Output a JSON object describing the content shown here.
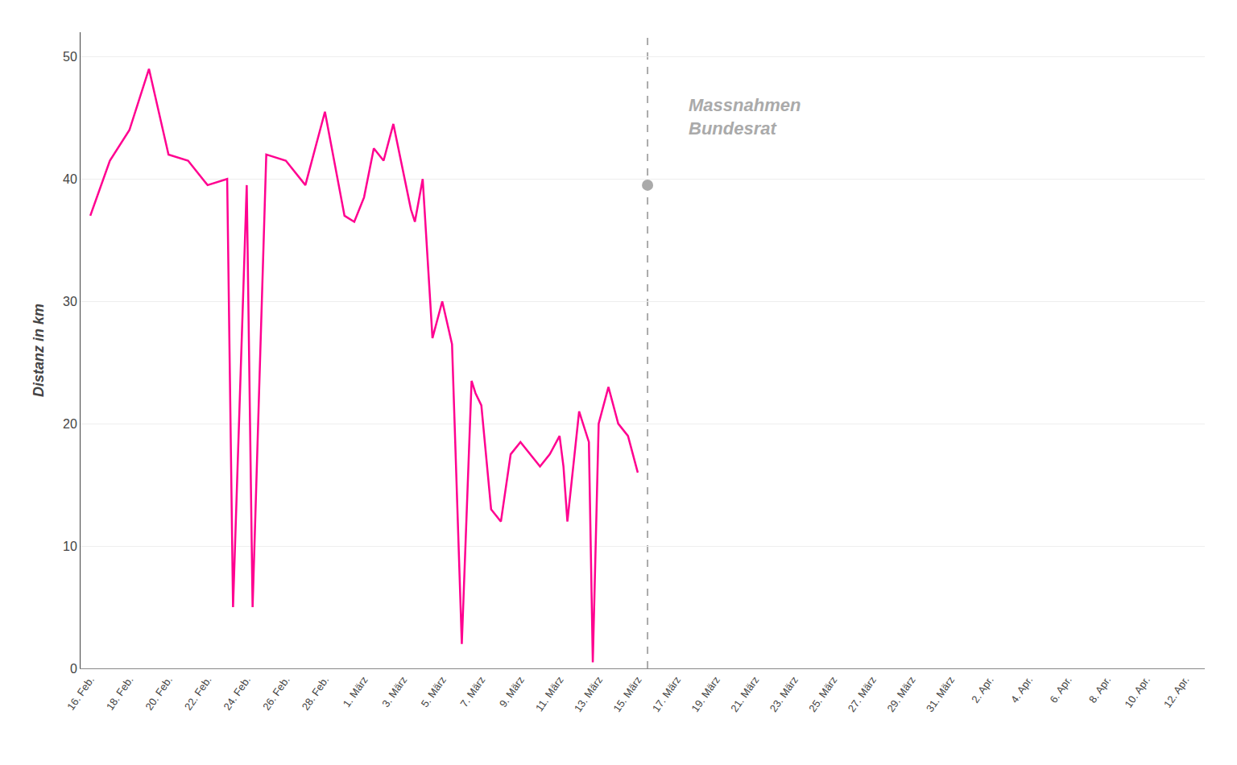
{
  "chart_data": {
    "type": "line",
    "ylabel": "Distanz in km",
    "series": [
      {
        "type": "line",
        "color": "#FF0090",
        "x": [
          0,
          1,
          2,
          3,
          4,
          5,
          6,
          7,
          7.3,
          8,
          8.3,
          9,
          10,
          11,
          12,
          13,
          13.5,
          14,
          14.5,
          15,
          15.5,
          16,
          16.4,
          16.6,
          17,
          17.5,
          18,
          18.5,
          19,
          19.5,
          19.7,
          20,
          20.5,
          21,
          21.5,
          22,
          22.5,
          23,
          23.5,
          24,
          24.2,
          24.4,
          25,
          25.5,
          25.7,
          26,
          26.5,
          27,
          27.5,
          28
        ],
        "values": [
          37.0,
          41.5,
          44.0,
          49.0,
          42.0,
          41.5,
          39.5,
          40.0,
          5.0,
          39.5,
          5.0,
          42.0,
          41.5,
          39.5,
          45.5,
          37.0,
          36.5,
          38.5,
          42.5,
          41.5,
          44.5,
          40.5,
          37.5,
          36.5,
          40.0,
          27.0,
          30.0,
          26.5,
          2.0,
          23.5,
          22.5,
          21.5,
          13.0,
          12.0,
          17.5,
          18.5,
          17.5,
          16.5,
          17.5,
          19.0,
          16.5,
          12.0,
          21.0,
          18.5,
          0.5,
          20.0,
          23.0,
          20.0,
          19.0,
          16.0
        ]
      },
      {
        "type": "scatter",
        "color": "#aaaaaa",
        "marker": "circle",
        "x": [
          28.5
        ],
        "values": [
          39.5
        ]
      }
    ],
    "vline": {
      "x": 28.5,
      "color": "#aaaaaa",
      "line_style": "dashed"
    },
    "annotations": [
      {
        "text": "Massnahmen\nBundesrat",
        "x": 30.5,
        "y": 47.0,
        "color": "#aaaaaa"
      }
    ],
    "xlim": [
      -0.5,
      57
    ],
    "xticks": [
      {
        "value": 0,
        "label": "16. Feb."
      },
      {
        "value": 2,
        "label": "18. Feb."
      },
      {
        "value": 4,
        "label": "20. Feb."
      },
      {
        "value": 6,
        "label": "22. Feb."
      },
      {
        "value": 8,
        "label": "24. Feb."
      },
      {
        "value": 10,
        "label": "26. Feb."
      },
      {
        "value": 12,
        "label": "28. Feb."
      },
      {
        "value": 14,
        "label": "1. März"
      },
      {
        "value": 16,
        "label": "3. März"
      },
      {
        "value": 18,
        "label": "5. März"
      },
      {
        "value": 20,
        "label": "7. März"
      },
      {
        "value": 22,
        "label": "9. März"
      },
      {
        "value": 24,
        "label": "11. März"
      },
      {
        "value": 26,
        "label": "13. März"
      },
      {
        "value": 28,
        "label": "15. März"
      },
      {
        "value": 30,
        "label": "17. März"
      },
      {
        "value": 32,
        "label": "19. März"
      },
      {
        "value": 34,
        "label": "21. März"
      },
      {
        "value": 36,
        "label": "23. März"
      },
      {
        "value": 38,
        "label": "25. März"
      },
      {
        "value": 40,
        "label": "27. März"
      },
      {
        "value": 42,
        "label": "29. März"
      },
      {
        "value": 44,
        "label": "31. März"
      },
      {
        "value": 46,
        "label": "2. Apr."
      },
      {
        "value": 48,
        "label": "4. Apr."
      },
      {
        "value": 50,
        "label": "6. Apr."
      },
      {
        "value": 52,
        "label": "8. Apr."
      },
      {
        "value": 54,
        "label": "10. Apr."
      },
      {
        "value": 56,
        "label": "12. Apr."
      }
    ],
    "ylim": [
      0,
      52
    ],
    "yticks": [
      0,
      10,
      20,
      30,
      40,
      50
    ],
    "grid": "y"
  }
}
